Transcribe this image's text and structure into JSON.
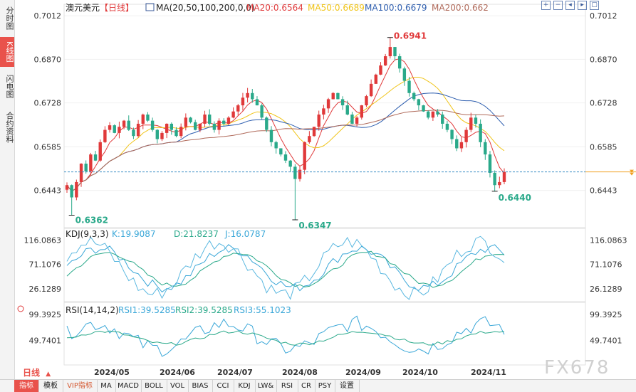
{
  "side_tabs": [
    {
      "label": "分时图",
      "active": false
    },
    {
      "label": "K线图",
      "active": true
    },
    {
      "label": "闪电图",
      "active": false
    },
    {
      "label": "合约资料",
      "active": false
    }
  ],
  "header": {
    "symbol": "澳元美元",
    "period_tag": "【日线】",
    "ma_params": "MA(20,50,100,200,0,0)",
    "ma_values": [
      {
        "label": "MA20:0.6564",
        "color": "#e0393a"
      },
      {
        "label": "MA50:0.6689",
        "color": "#f0c419"
      },
      {
        "label": "MA100:0.6679",
        "color": "#2f5faf"
      },
      {
        "label": "MA200:0.662",
        "color": "#b06a5a"
      }
    ]
  },
  "toolbar_icons": [
    "plus-icon",
    "minus-icon",
    "left-icon",
    "right-icon",
    "fullscreen-icon"
  ],
  "price_axis": {
    "ticks": [
      "0.7012",
      "0.6870",
      "0.6728",
      "0.6585",
      "0.6443"
    ]
  },
  "kdj": {
    "label": "KDJ(9,3,3)",
    "k": "K:19.9087",
    "d": "D:21.8237",
    "j": "J:16.0787",
    "ticks": [
      "116.0863",
      "71.1076",
      "26.1289"
    ]
  },
  "rsi": {
    "label": "RSI(14,14,2)",
    "rsi1": "RSI1:39.5285",
    "rsi2": "RSI2:39.5285",
    "rsi3": "RSI3:55.1023",
    "ticks": [
      "99.3925",
      "49.7401"
    ]
  },
  "date_axis": [
    "2024/05",
    "2024/06",
    "2024/07",
    "2024/08",
    "2024/09",
    "2024/10",
    "2024/11"
  ],
  "period_selector": "日线",
  "bottom_tabs": [
    "指标",
    "模板",
    "VIP指标",
    "MA",
    "MACD",
    "BOLL",
    "VOL",
    "BIAS",
    "CCI",
    "KDJ",
    "LW&",
    "RSI",
    "CR",
    "PSY",
    "设置"
  ],
  "watermark": "FX678",
  "colors": {
    "up": "#e0393a",
    "down": "#2aa98a",
    "low_label": "#2aa98a",
    "high_label": "#e0393a"
  },
  "chart_data": {
    "type": "candlestick",
    "title": "澳元美元【日线】",
    "ylim": [
      0.634,
      0.704
    ],
    "annotations": [
      {
        "text": "0.6941",
        "kind": "high"
      },
      {
        "text": "0.6362",
        "kind": "low"
      },
      {
        "text": "0.6347",
        "kind": "low"
      },
      {
        "text": "0.6440",
        "kind": "low"
      }
    ],
    "last_price": 0.6503,
    "ohlc_anchors": [
      [
        0.6445,
        0.646
      ],
      [
        0.646,
        0.642
      ],
      [
        0.642,
        0.647
      ],
      [
        0.647,
        0.653
      ],
      [
        0.653,
        0.6505
      ],
      [
        0.6505,
        0.656
      ],
      [
        0.656,
        0.654
      ],
      [
        0.654,
        0.66
      ],
      [
        0.66,
        0.664
      ],
      [
        0.664,
        0.6655
      ],
      [
        0.6655,
        0.663
      ],
      [
        0.663,
        0.665
      ],
      [
        0.665,
        0.667
      ],
      [
        0.667,
        0.664
      ],
      [
        0.664,
        0.662
      ],
      [
        0.662,
        0.666
      ],
      [
        0.666,
        0.669
      ],
      [
        0.669,
        0.667
      ],
      [
        0.667,
        0.664
      ],
      [
        0.664,
        0.661
      ],
      [
        0.661,
        0.663
      ],
      [
        0.663,
        0.666
      ],
      [
        0.666,
        0.664
      ],
      [
        0.664,
        0.662
      ],
      [
        0.662,
        0.665
      ],
      [
        0.665,
        0.668
      ],
      [
        0.668,
        0.6665
      ],
      [
        0.6665,
        0.664
      ],
      [
        0.664,
        0.666
      ],
      [
        0.666,
        0.669
      ],
      [
        0.669,
        0.666
      ],
      [
        0.666,
        0.664
      ],
      [
        0.664,
        0.667
      ],
      [
        0.667,
        0.666
      ],
      [
        0.666,
        0.668
      ],
      [
        0.668,
        0.67
      ],
      [
        0.67,
        0.672
      ],
      [
        0.672,
        0.6745
      ],
      [
        0.6745,
        0.676
      ],
      [
        0.676,
        0.674
      ],
      [
        0.674,
        0.672
      ],
      [
        0.672,
        0.668
      ],
      [
        0.668,
        0.664
      ],
      [
        0.664,
        0.66
      ],
      [
        0.66,
        0.658
      ],
      [
        0.658,
        0.656
      ],
      [
        0.656,
        0.654
      ],
      [
        0.654,
        0.652
      ],
      [
        0.652,
        0.648
      ],
      [
        0.648,
        0.651
      ],
      [
        0.651,
        0.66
      ],
      [
        0.66,
        0.662
      ],
      [
        0.662,
        0.665
      ],
      [
        0.665,
        0.669
      ],
      [
        0.669,
        0.671
      ],
      [
        0.671,
        0.674
      ],
      [
        0.674,
        0.676
      ],
      [
        0.676,
        0.674
      ],
      [
        0.674,
        0.672
      ],
      [
        0.672,
        0.669
      ],
      [
        0.669,
        0.666
      ],
      [
        0.666,
        0.668
      ],
      [
        0.668,
        0.672
      ],
      [
        0.672,
        0.675
      ],
      [
        0.675,
        0.679
      ],
      [
        0.679,
        0.682
      ],
      [
        0.682,
        0.685
      ],
      [
        0.685,
        0.688
      ],
      [
        0.688,
        0.691
      ],
      [
        0.691,
        0.688
      ],
      [
        0.688,
        0.684
      ],
      [
        0.684,
        0.68
      ],
      [
        0.68,
        0.676
      ],
      [
        0.676,
        0.674
      ],
      [
        0.674,
        0.672
      ],
      [
        0.672,
        0.67
      ],
      [
        0.67,
        0.668
      ],
      [
        0.668,
        0.67
      ],
      [
        0.67,
        0.669
      ],
      [
        0.669,
        0.666
      ],
      [
        0.666,
        0.664
      ],
      [
        0.664,
        0.661
      ],
      [
        0.661,
        0.658
      ],
      [
        0.658,
        0.66
      ],
      [
        0.66,
        0.664
      ],
      [
        0.664,
        0.668
      ],
      [
        0.668,
        0.666
      ],
      [
        0.666,
        0.66
      ],
      [
        0.66,
        0.656
      ],
      [
        0.656,
        0.65
      ],
      [
        0.65,
        0.646
      ],
      [
        0.646,
        0.647
      ],
      [
        0.647,
        0.6503
      ]
    ]
  }
}
